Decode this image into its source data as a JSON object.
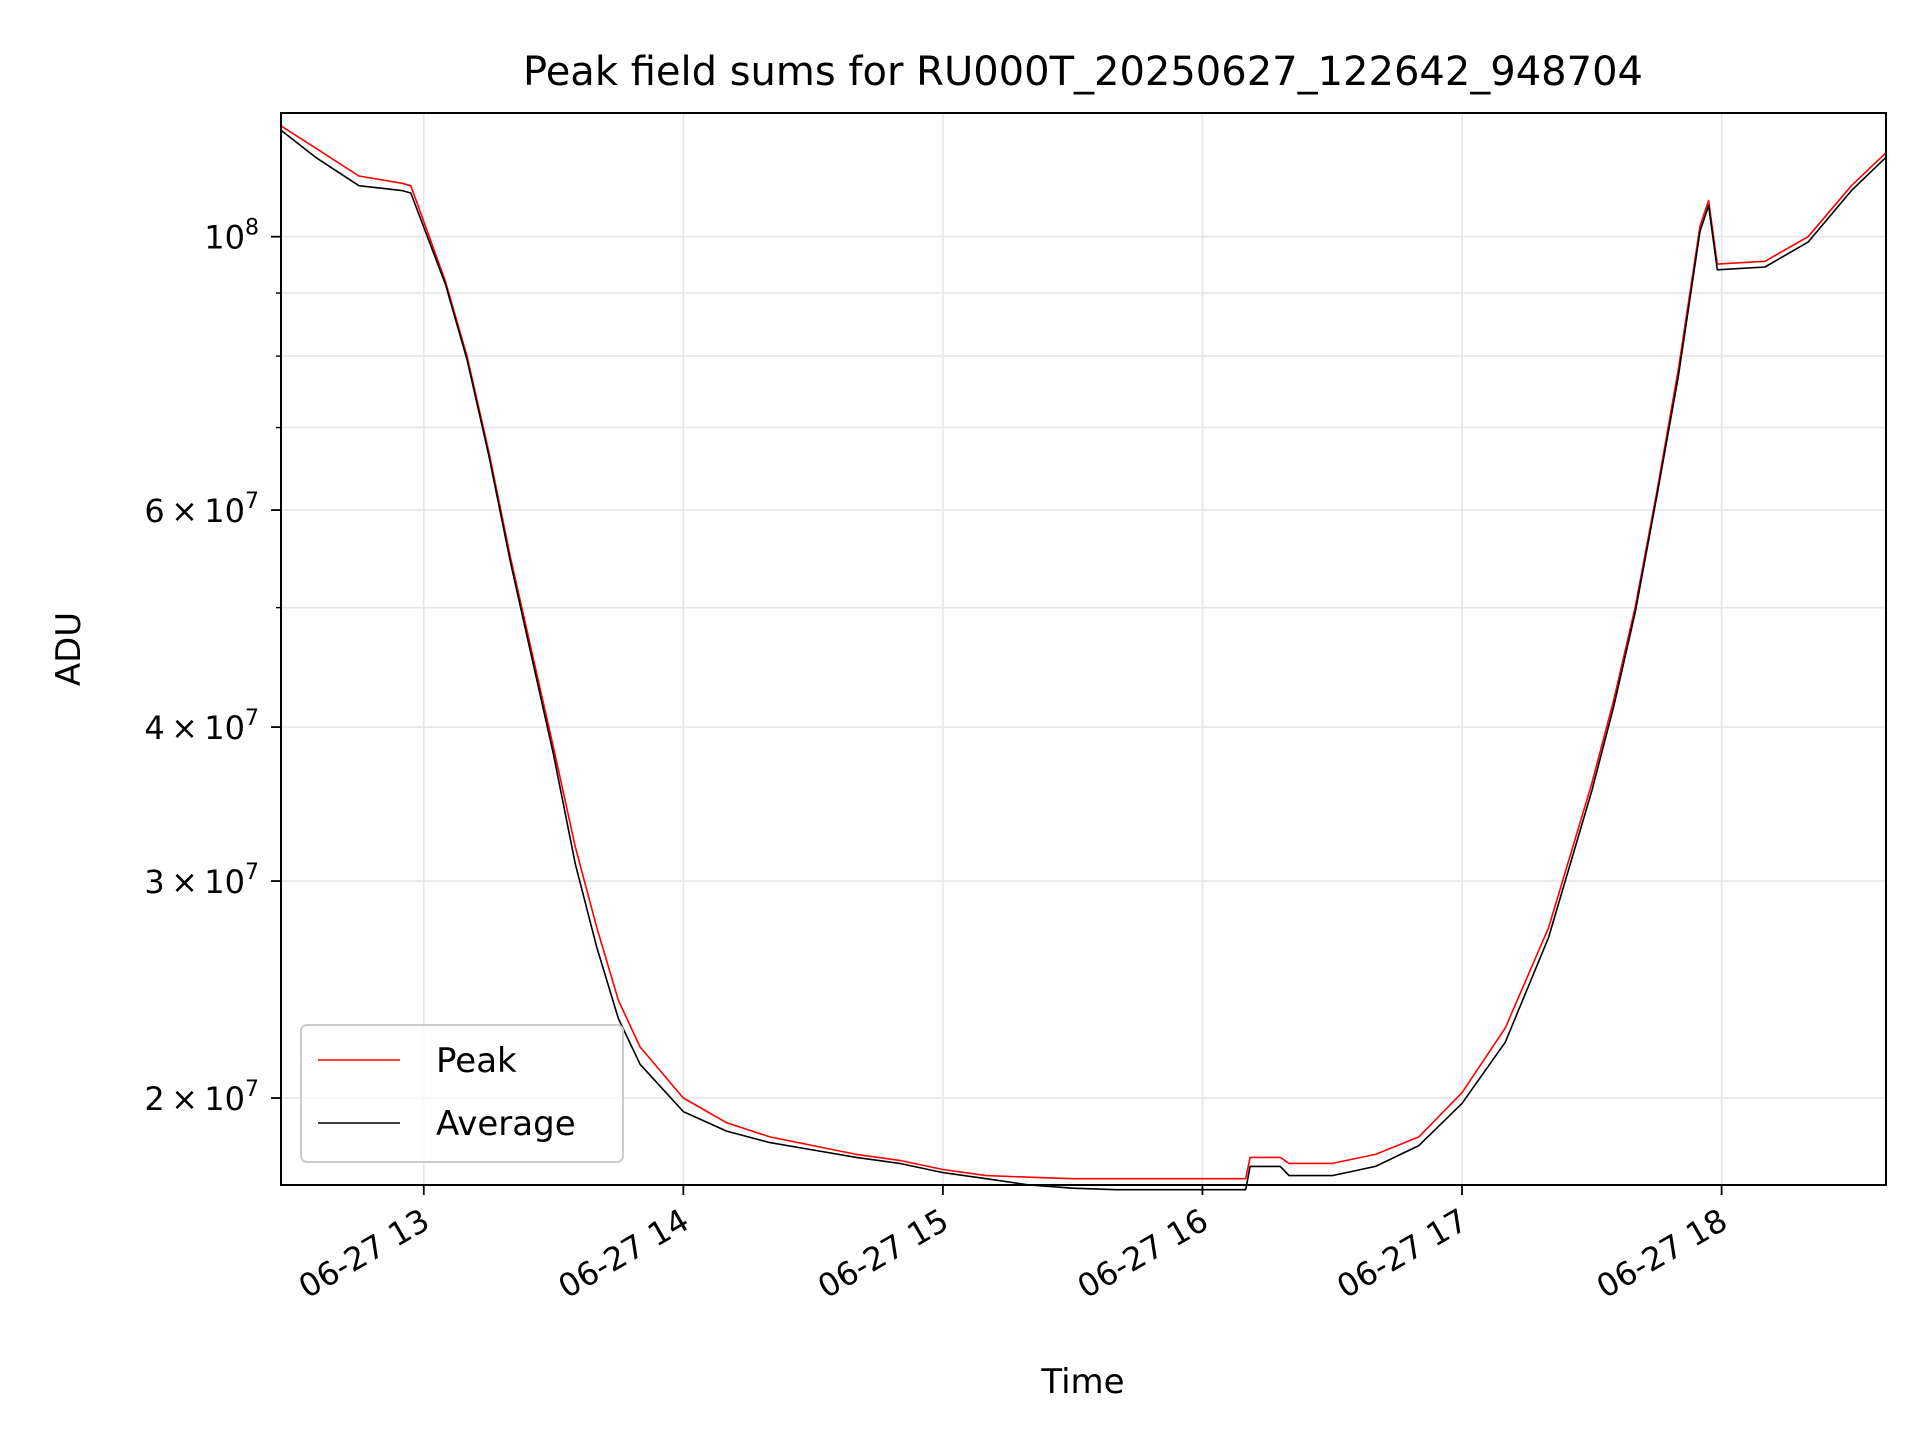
{
  "chart_data": {
    "type": "line",
    "title": "Peak field sums for RU000T_20250627_122642_948704",
    "xlabel": "Time",
    "ylabel": "ADU",
    "yscale": "log",
    "xlim": [
      "2025-06-27 12:27",
      "2025-06-27 18:38"
    ],
    "ylim": [
      17000000,
      126000000
    ],
    "x_ticks": [
      {
        "value": "2025-06-27 13:00",
        "label": "06-27 13"
      },
      {
        "value": "2025-06-27 14:00",
        "label": "06-27 14"
      },
      {
        "value": "2025-06-27 15:00",
        "label": "06-27 15"
      },
      {
        "value": "2025-06-27 16:00",
        "label": "06-27 16"
      },
      {
        "value": "2025-06-27 17:00",
        "label": "06-27 17"
      },
      {
        "value": "2025-06-27 18:00",
        "label": "06-27 18"
      }
    ],
    "y_ticks": [
      {
        "value": 20000000,
        "mantissa": "2",
        "exp": "7"
      },
      {
        "value": 30000000,
        "mantissa": "3",
        "exp": "7"
      },
      {
        "value": 40000000,
        "mantissa": "4",
        "exp": "7"
      },
      {
        "value": 60000000,
        "mantissa": "6",
        "exp": "7"
      },
      {
        "value": 100000000,
        "mantissa": "",
        "exp": "8"
      }
    ],
    "y_minor_ticks": [
      50000000,
      70000000,
      80000000,
      90000000
    ],
    "grid": true,
    "legend_position": "lower-left",
    "series": [
      {
        "name": "Peak",
        "color": "#ff0000",
        "x": [
          "2025-06-27 12:27",
          "2025-06-27 12:35",
          "2025-06-27 12:45",
          "2025-06-27 12:55",
          "2025-06-27 12:57",
          "2025-06-27 13:05",
          "2025-06-27 13:10",
          "2025-06-27 13:15",
          "2025-06-27 13:20",
          "2025-06-27 13:25",
          "2025-06-27 13:30",
          "2025-06-27 13:35",
          "2025-06-27 13:40",
          "2025-06-27 13:45",
          "2025-06-27 13:50",
          "2025-06-27 14:00",
          "2025-06-27 14:10",
          "2025-06-27 14:20",
          "2025-06-27 14:30",
          "2025-06-27 14:40",
          "2025-06-27 14:50",
          "2025-06-27 15:00",
          "2025-06-27 15:10",
          "2025-06-27 15:20",
          "2025-06-27 15:30",
          "2025-06-27 15:40",
          "2025-06-27 15:50",
          "2025-06-27 16:00",
          "2025-06-27 16:05",
          "2025-06-27 16:10",
          "2025-06-27 16:11",
          "2025-06-27 16:18",
          "2025-06-27 16:20",
          "2025-06-27 16:30",
          "2025-06-27 16:40",
          "2025-06-27 16:50",
          "2025-06-27 17:00",
          "2025-06-27 17:10",
          "2025-06-27 17:20",
          "2025-06-27 17:30",
          "2025-06-27 17:35",
          "2025-06-27 17:40",
          "2025-06-27 17:45",
          "2025-06-27 17:50",
          "2025-06-27 17:55",
          "2025-06-27 17:57",
          "2025-06-27 17:59",
          "2025-06-27 18:10",
          "2025-06-27 18:20",
          "2025-06-27 18:30",
          "2025-06-27 18:38"
        ],
        "values": [
          123000000,
          118000000,
          112000000,
          110500000,
          110000000,
          92000000,
          80000000,
          67000000,
          55000000,
          46000000,
          38500000,
          32000000,
          27500000,
          24000000,
          22000000,
          20000000,
          19100000,
          18600000,
          18300000,
          18000000,
          17800000,
          17500000,
          17300000,
          17250000,
          17200000,
          17200000,
          17200000,
          17200000,
          17200000,
          17200000,
          17900000,
          17900000,
          17700000,
          17700000,
          18000000,
          18600000,
          20200000,
          22800000,
          27500000,
          36000000,
          42000000,
          50000000,
          62000000,
          78000000,
          102000000,
          107000000,
          95000000,
          95500000,
          100000000,
          110000000,
          117000000
        ]
      },
      {
        "name": "Average",
        "color": "#000000",
        "x": [
          "2025-06-27 12:27",
          "2025-06-27 12:35",
          "2025-06-27 12:45",
          "2025-06-27 12:55",
          "2025-06-27 12:57",
          "2025-06-27 13:05",
          "2025-06-27 13:10",
          "2025-06-27 13:15",
          "2025-06-27 13:20",
          "2025-06-27 13:25",
          "2025-06-27 13:30",
          "2025-06-27 13:35",
          "2025-06-27 13:40",
          "2025-06-27 13:45",
          "2025-06-27 13:50",
          "2025-06-27 14:00",
          "2025-06-27 14:10",
          "2025-06-27 14:20",
          "2025-06-27 14:30",
          "2025-06-27 14:40",
          "2025-06-27 14:50",
          "2025-06-27 15:00",
          "2025-06-27 15:10",
          "2025-06-27 15:20",
          "2025-06-27 15:30",
          "2025-06-27 15:40",
          "2025-06-27 15:50",
          "2025-06-27 16:00",
          "2025-06-27 16:05",
          "2025-06-27 16:10",
          "2025-06-27 16:11",
          "2025-06-27 16:18",
          "2025-06-27 16:20",
          "2025-06-27 16:30",
          "2025-06-27 16:40",
          "2025-06-27 16:50",
          "2025-06-27 17:00",
          "2025-06-27 17:10",
          "2025-06-27 17:20",
          "2025-06-27 17:30",
          "2025-06-27 17:35",
          "2025-06-27 17:40",
          "2025-06-27 17:45",
          "2025-06-27 17:50",
          "2025-06-27 17:55",
          "2025-06-27 17:57",
          "2025-06-27 17:59",
          "2025-06-27 18:10",
          "2025-06-27 18:20",
          "2025-06-27 18:30",
          "2025-06-27 18:38"
        ],
        "values": [
          122000000,
          116000000,
          110000000,
          109000000,
          108500000,
          91500000,
          79500000,
          66500000,
          54500000,
          45500000,
          38000000,
          31000000,
          26500000,
          23200000,
          21300000,
          19500000,
          18800000,
          18400000,
          18150000,
          17900000,
          17700000,
          17400000,
          17200000,
          17000000,
          16900000,
          16850000,
          16850000,
          16850000,
          16850000,
          16850000,
          17600000,
          17600000,
          17300000,
          17300000,
          17600000,
          18300000,
          19800000,
          22200000,
          27000000,
          35500000,
          41500000,
          49500000,
          61500000,
          77000000,
          101000000,
          106000000,
          94000000,
          94500000,
          99000000,
          109000000,
          116000000
        ]
      }
    ]
  }
}
